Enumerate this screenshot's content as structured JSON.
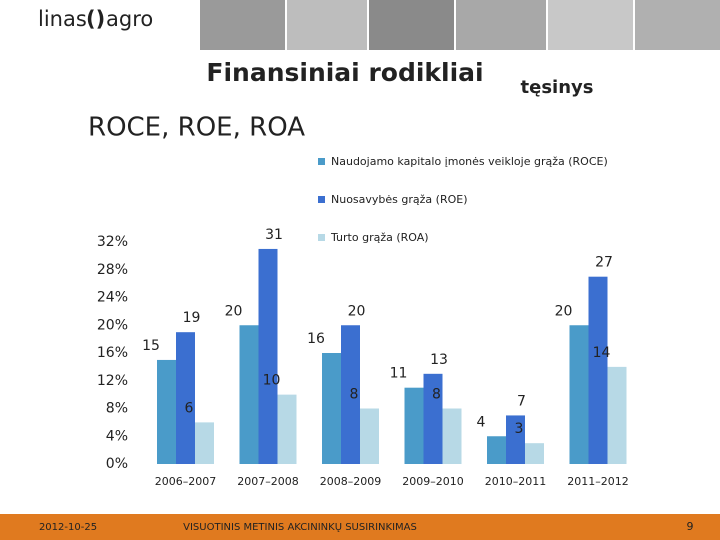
{
  "slide": {
    "logo_left": "linas",
    "logo_right": "agro",
    "title": "Finansiniai rodikliai",
    "note": "tęsinys",
    "heading": "ROCE, ROE, ROA"
  },
  "footer": {
    "date": "2012-10-25",
    "event": "VISUOTINIS METINIS AKCININKŲ SUSIRINKIMAS",
    "page": "9"
  },
  "chart_data": {
    "type": "bar",
    "categories": [
      "2006–2007",
      "2007–2008",
      "2008–2009",
      "2009–2010",
      "2010–2011",
      "2011–2012"
    ],
    "series": [
      {
        "name": "Naudojamo kapitalo įmonės veikloje grąža (ROCE)",
        "color": "#4a9bc9",
        "values": [
          15,
          20,
          16,
          11,
          4,
          20
        ]
      },
      {
        "name": "Nuosavybės grąža (ROE)",
        "color": "#3b6fd0",
        "values": [
          19,
          31,
          20,
          13,
          7,
          27
        ]
      },
      {
        "name": "Turto grąža (ROA)",
        "color": "#b7d9e6",
        "values": [
          6,
          10,
          8,
          8,
          3,
          14
        ]
      }
    ],
    "ylim": [
      0,
      32
    ],
    "yticks": [
      {
        "value": 0,
        "label": "0%"
      },
      {
        "value": 4,
        "label": "4%"
      },
      {
        "value": 8,
        "label": "8%"
      },
      {
        "value": 12,
        "label": "12%"
      },
      {
        "value": 16,
        "label": "16%"
      },
      {
        "value": 20,
        "label": "20%"
      },
      {
        "value": 24,
        "label": "24%"
      },
      {
        "value": 28,
        "label": "28%"
      },
      {
        "value": 32,
        "label": "32%"
      }
    ],
    "grid": false
  }
}
